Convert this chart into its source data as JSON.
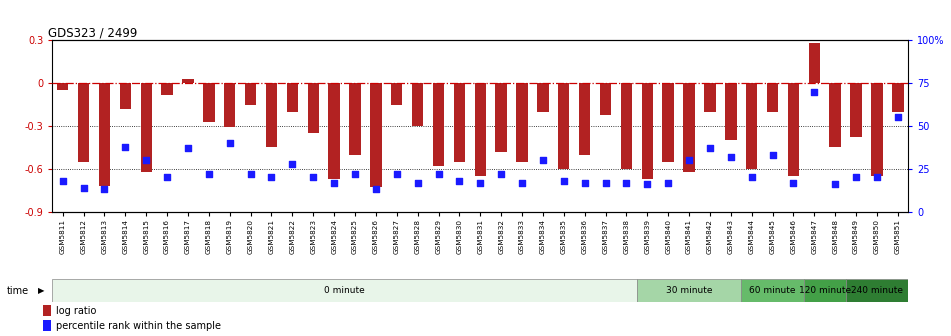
{
  "title": "GDS323 / 2499",
  "samples": [
    "GSM5811",
    "GSM5812",
    "GSM5813",
    "GSM5814",
    "GSM5815",
    "GSM5816",
    "GSM5817",
    "GSM5818",
    "GSM5819",
    "GSM5820",
    "GSM5821",
    "GSM5822",
    "GSM5823",
    "GSM5824",
    "GSM5825",
    "GSM5826",
    "GSM5827",
    "GSM5828",
    "GSM5829",
    "GSM5830",
    "GSM5831",
    "GSM5832",
    "GSM5833",
    "GSM5834",
    "GSM5835",
    "GSM5836",
    "GSM5837",
    "GSM5838",
    "GSM5839",
    "GSM5840",
    "GSM5841",
    "GSM5842",
    "GSM5843",
    "GSM5844",
    "GSM5845",
    "GSM5846",
    "GSM5847",
    "GSM5848",
    "GSM5849",
    "GSM5850",
    "GSM5851"
  ],
  "log_ratio": [
    -0.05,
    -0.55,
    -0.72,
    -0.18,
    -0.62,
    -0.08,
    0.03,
    -0.27,
    -0.31,
    -0.15,
    -0.45,
    -0.2,
    -0.35,
    -0.67,
    -0.5,
    -0.73,
    -0.15,
    -0.3,
    -0.58,
    -0.55,
    -0.65,
    -0.48,
    -0.55,
    -0.2,
    -0.6,
    -0.5,
    -0.22,
    -0.6,
    -0.67,
    -0.55,
    -0.62,
    -0.2,
    -0.4,
    -0.6,
    -0.2,
    -0.65,
    0.28,
    -0.45,
    -0.38,
    -0.65,
    -0.2
  ],
  "percentile": [
    18,
    14,
    13,
    38,
    30,
    20,
    37,
    22,
    40,
    22,
    20,
    28,
    20,
    17,
    22,
    13,
    22,
    17,
    22,
    18,
    17,
    22,
    17,
    30,
    18,
    17,
    17,
    17,
    16,
    17,
    30,
    37,
    32,
    20,
    33,
    17,
    70,
    16,
    20,
    20,
    55
  ],
  "time_groups": [
    {
      "label": "0 minute",
      "start": 0,
      "end": 28,
      "color": "#e8f5e9"
    },
    {
      "label": "30 minute",
      "start": 28,
      "end": 33,
      "color": "#a5d6a7"
    },
    {
      "label": "60 minute",
      "start": 33,
      "end": 36,
      "color": "#66bb6a"
    },
    {
      "label": "120 minute",
      "start": 36,
      "end": 38,
      "color": "#43a047"
    },
    {
      "label": "240 minute",
      "start": 38,
      "end": 41,
      "color": "#2e7d32"
    }
  ],
  "bar_color": "#b22222",
  "dot_color": "#1a1aff",
  "ylim_left": [
    -0.9,
    0.3
  ],
  "ylim_right": [
    0,
    100
  ],
  "hline_zero_color": "#cc0000",
  "hgrid_color": "black"
}
